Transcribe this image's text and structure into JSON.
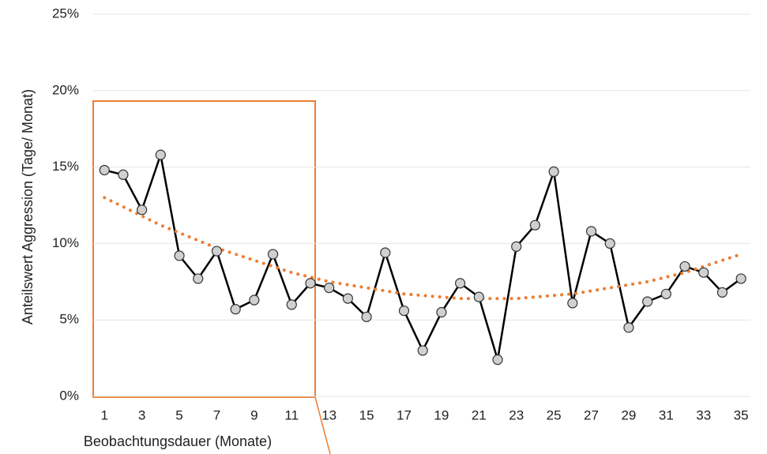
{
  "chart_data": {
    "type": "line",
    "xlabel": "Beobachtungsdauer (Monate)",
    "ylabel": "Anteilswert Aggression (Tage/ Monat)",
    "x": [
      1,
      2,
      3,
      4,
      5,
      6,
      7,
      8,
      9,
      10,
      11,
      12,
      13,
      14,
      15,
      16,
      17,
      18,
      19,
      20,
      21,
      22,
      23,
      24,
      25,
      26,
      27,
      28,
      29,
      30,
      31,
      32,
      33,
      34,
      35
    ],
    "series": [
      {
        "color": "#000000",
        "marker_color": "#d0d0d0",
        "values": [
          14.8,
          14.5,
          12.2,
          15.8,
          9.2,
          7.7,
          9.5,
          5.7,
          6.3,
          9.3,
          6.0,
          7.4,
          7.1,
          6.4,
          5.2,
          9.4,
          5.6,
          3.0,
          5.5,
          7.4,
          6.5,
          2.4,
          9.8,
          11.2,
          14.7,
          6.1,
          10.8,
          10.0,
          4.5,
          6.2,
          6.7,
          8.5,
          8.1,
          6.8,
          7.7
        ]
      },
      {
        "color": "#ed7d31",
        "style": "dotted",
        "values": [
          13.0,
          12.4,
          11.8,
          11.2,
          10.7,
          10.2,
          9.7,
          9.3,
          8.9,
          8.5,
          8.1,
          7.8,
          7.5,
          7.3,
          7.1,
          6.9,
          6.7,
          6.6,
          6.5,
          6.4,
          6.4,
          6.4,
          6.4,
          6.5,
          6.6,
          6.7,
          6.9,
          7.1,
          7.3,
          7.5,
          7.8,
          8.1,
          8.5,
          8.9,
          9.3
        ]
      }
    ],
    "xlim": [
      0.4,
      35.5
    ],
    "xticks": [
      1,
      3,
      5,
      7,
      9,
      11,
      13,
      15,
      17,
      19,
      21,
      23,
      25,
      27,
      29,
      31,
      33,
      35
    ],
    "ylim": [
      0,
      25
    ],
    "yticks": [
      {
        "value": 0,
        "label": "0%"
      },
      {
        "value": 5,
        "label": "5%"
      },
      {
        "value": 10,
        "label": "10%"
      },
      {
        "value": 15,
        "label": "15%"
      },
      {
        "value": 20,
        "label": "20%"
      },
      {
        "value": 25,
        "label": "25%"
      }
    ],
    "grid": true
  }
}
